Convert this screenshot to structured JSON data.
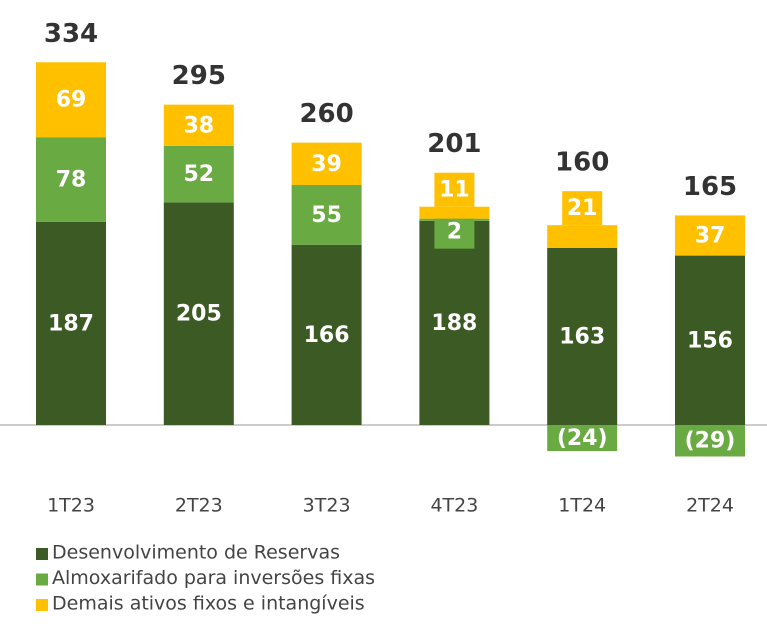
{
  "chart_data": {
    "type": "stacked_bar",
    "categories": [
      "1T23",
      "2T23",
      "3T23",
      "4T23",
      "1T24",
      "2T24"
    ],
    "series": [
      {
        "name": "Desenvolvimento de Reservas",
        "color": "#3b5a24",
        "values": [
          187,
          205,
          166,
          188,
          163,
          156
        ]
      },
      {
        "name": "Almoxarifado para inversões fixas",
        "color": "#6aaa43",
        "values": [
          78,
          52,
          55,
          2,
          -24,
          -29
        ],
        "value_labels": [
          "78",
          "52",
          "55",
          "2",
          "(24)",
          "(29)"
        ]
      },
      {
        "name": "Demais ativos fixos e intangíveis",
        "color": "#ffc000",
        "values": [
          69,
          38,
          39,
          11,
          21,
          37
        ]
      }
    ],
    "totals": [
      334,
      295,
      260,
      201,
      160,
      165
    ],
    "legend": "bottom-left"
  }
}
